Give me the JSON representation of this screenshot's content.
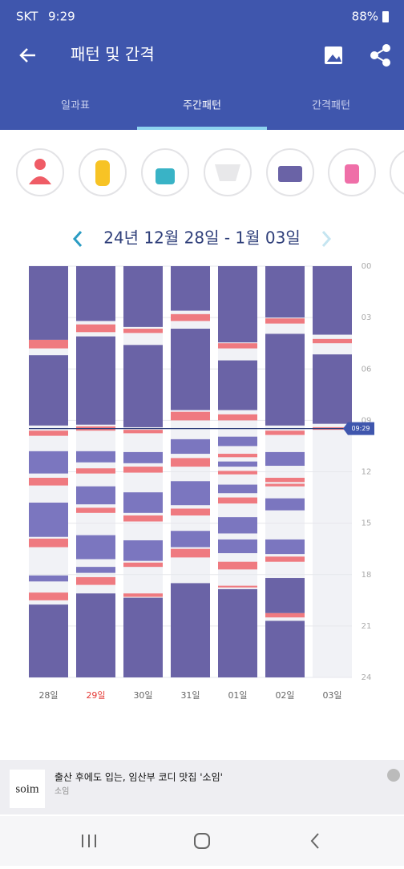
{
  "status_bar": {
    "carrier": "SKT",
    "time": "9:29",
    "battery": "88%"
  },
  "header": {
    "title": "패턴 및 간격"
  },
  "tabs": [
    "일과표",
    "주간패턴",
    "간격패턴"
  ],
  "chart": {
    "range": "24년 12월 28일 - 1월 03일",
    "ylim": [
      0,
      24
    ],
    "yticks": [
      {
        "value": 0,
        "label": "00"
      },
      {
        "value": 3,
        "label": "03"
      },
      {
        "value": 6,
        "label": "06"
      },
      {
        "value": 9,
        "label": "09"
      },
      {
        "value": 12,
        "label": "12"
      },
      {
        "value": 15,
        "label": "15"
      },
      {
        "value": 18,
        "label": "18"
      },
      {
        "value": 21,
        "label": "21"
      },
      24
    ],
    "colors": {
      "sleep": "#6a63a6",
      "nap": "#7b76bf",
      "feed": "#ef7a80"
    },
    "now": {
      "label": "09:29",
      "hour": 9.48
    },
    "days": [
      {
        "label": "28일",
        "segments": [
          [
            0,
            4.3,
            "sleep"
          ],
          [
            4.3,
            4.8,
            "feed"
          ],
          [
            5.2,
            9.3,
            "sleep"
          ],
          [
            9.6,
            9.9,
            "feed"
          ],
          [
            10.8,
            12.1,
            "nap"
          ],
          [
            12.35,
            12.8,
            "feed"
          ],
          [
            13.8,
            15.8,
            "nap"
          ],
          [
            15.9,
            16.4,
            "feed"
          ],
          [
            18.05,
            18.4,
            "nap"
          ],
          [
            19.05,
            19.5,
            "feed"
          ],
          [
            19.75,
            24,
            "sleep"
          ]
        ]
      },
      {
        "label": "29일",
        "label_color": "#e53935",
        "segments": [
          [
            0,
            3.2,
            "sleep"
          ],
          [
            3.4,
            3.85,
            "feed"
          ],
          [
            4.1,
            9.25,
            "sleep"
          ],
          [
            9.35,
            9.6,
            "feed"
          ],
          [
            10.8,
            11.45,
            "nap"
          ],
          [
            11.8,
            12.1,
            "feed"
          ],
          [
            12.85,
            13.9,
            "nap"
          ],
          [
            14.1,
            14.4,
            "feed"
          ],
          [
            15.7,
            17.1,
            "nap"
          ],
          [
            17.55,
            17.9,
            "nap"
          ],
          [
            18.15,
            18.6,
            "feed"
          ],
          [
            19.1,
            24,
            "sleep"
          ]
        ]
      },
      {
        "label": "30일",
        "segments": [
          [
            0,
            3.55,
            "sleep"
          ],
          [
            3.65,
            3.9,
            "feed"
          ],
          [
            4.6,
            9.4,
            "sleep"
          ],
          [
            9.55,
            9.75,
            "feed"
          ],
          [
            10.85,
            11.5,
            "nap"
          ],
          [
            11.7,
            12.05,
            "feed"
          ],
          [
            13.2,
            14.4,
            "nap"
          ],
          [
            14.55,
            14.9,
            "feed"
          ],
          [
            16,
            17.2,
            "nap"
          ],
          [
            17.3,
            17.55,
            "feed"
          ],
          [
            19.1,
            19.3,
            "feed"
          ],
          [
            19.35,
            24,
            "sleep"
          ]
        ]
      },
      {
        "label": "31일",
        "segments": [
          [
            0,
            2.6,
            "sleep"
          ],
          [
            2.8,
            3.2,
            "feed"
          ],
          [
            3.65,
            8.4,
            "sleep"
          ],
          [
            8.5,
            9,
            "feed"
          ],
          [
            10.1,
            10.95,
            "nap"
          ],
          [
            11.2,
            11.7,
            "feed"
          ],
          [
            12.55,
            13.95,
            "nap"
          ],
          [
            14.15,
            14.55,
            "feed"
          ],
          [
            15.45,
            16.4,
            "nap"
          ],
          [
            16.5,
            17,
            "feed"
          ],
          [
            18.5,
            24,
            "sleep"
          ]
        ]
      },
      {
        "label": "01일",
        "segments": [
          [
            0,
            4.45,
            "sleep"
          ],
          [
            4.5,
            4.8,
            "feed"
          ],
          [
            5.5,
            8.4,
            "sleep"
          ],
          [
            8.65,
            9,
            "feed"
          ],
          [
            9.95,
            10.5,
            "nap"
          ],
          [
            10.95,
            11.15,
            "feed"
          ],
          [
            11.4,
            11.7,
            "nap"
          ],
          [
            11.95,
            12.15,
            "feed"
          ],
          [
            12.75,
            13.25,
            "nap"
          ],
          [
            13.5,
            13.85,
            "feed"
          ],
          [
            14.65,
            15.6,
            "nap"
          ],
          [
            15.95,
            16.75,
            "nap"
          ],
          [
            17.25,
            17.7,
            "feed"
          ],
          [
            18.65,
            18.75,
            "feed"
          ],
          [
            18.85,
            24,
            "sleep"
          ]
        ]
      },
      {
        "label": "02일",
        "segments": [
          [
            0,
            3,
            "sleep"
          ],
          [
            3.05,
            3.35,
            "feed"
          ],
          [
            3.95,
            9.3,
            "sleep"
          ],
          [
            9.6,
            9.85,
            "feed"
          ],
          [
            10.85,
            11.65,
            "nap"
          ],
          [
            12.35,
            12.6,
            "feed"
          ],
          [
            12.7,
            12.85,
            "feed"
          ],
          [
            13.55,
            14.25,
            "nap"
          ],
          [
            15.95,
            16.8,
            "nap"
          ],
          [
            16.95,
            17.25,
            "feed"
          ],
          [
            18.2,
            20.25,
            "sleep"
          ],
          [
            20.25,
            20.5,
            "feed"
          ],
          [
            20.7,
            24,
            "sleep"
          ]
        ]
      },
      {
        "label": "03일",
        "segments": [
          [
            0,
            4,
            "sleep"
          ],
          [
            4.25,
            4.5,
            "feed"
          ],
          [
            5.15,
            9.2,
            "sleep"
          ],
          [
            9.4,
            9.55,
            "feed"
          ]
        ]
      }
    ]
  },
  "ad": {
    "logo": "soim",
    "title": "출산 후에도 입는, 임산부 코디 맛집 '소임'",
    "source": "소임"
  }
}
